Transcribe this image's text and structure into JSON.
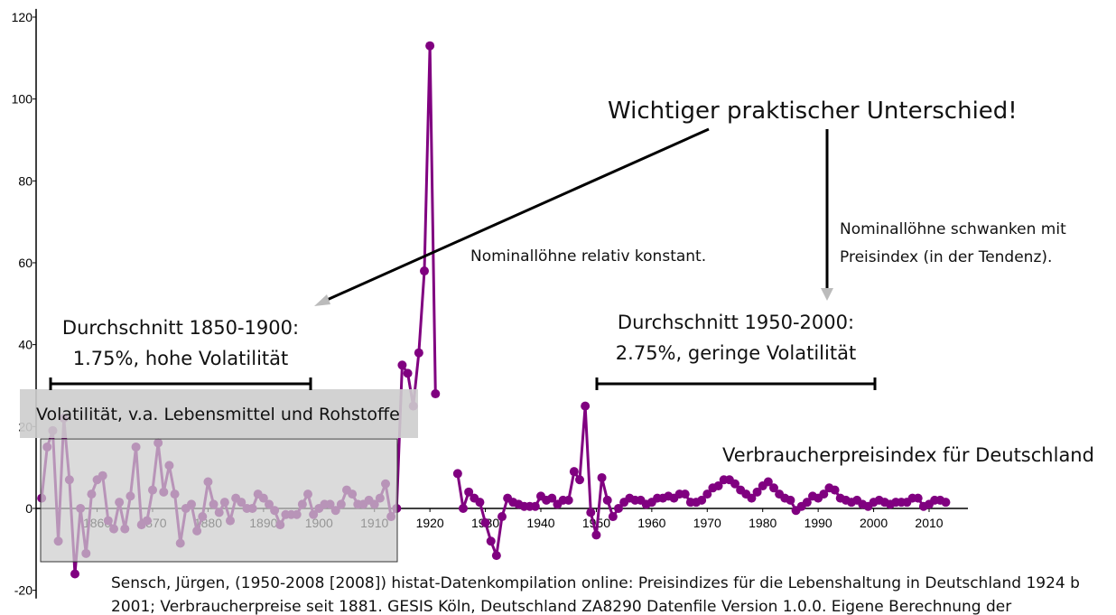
{
  "chart_data": {
    "type": "line",
    "x": [
      1850,
      1851,
      1852,
      1853,
      1854,
      1855,
      1856,
      1857,
      1858,
      1859,
      1860,
      1861,
      1862,
      1863,
      1864,
      1865,
      1866,
      1867,
      1868,
      1869,
      1870,
      1871,
      1872,
      1873,
      1874,
      1875,
      1876,
      1877,
      1878,
      1879,
      1880,
      1881,
      1882,
      1883,
      1884,
      1885,
      1886,
      1887,
      1888,
      1889,
      1890,
      1891,
      1892,
      1893,
      1894,
      1895,
      1896,
      1897,
      1898,
      1899,
      1900,
      1901,
      1902,
      1903,
      1904,
      1905,
      1906,
      1907,
      1908,
      1909,
      1910,
      1911,
      1912,
      1913,
      1914,
      1915,
      1916,
      1917,
      1918,
      1919,
      1920,
      1921,
      1922,
      1923,
      1924,
      1925,
      1926,
      1927,
      1928,
      1929,
      1930,
      1931,
      1932,
      1933,
      1934,
      1935,
      1936,
      1937,
      1938,
      1939,
      1940,
      1941,
      1942,
      1943,
      1944,
      1945,
      1946,
      1947,
      1948,
      1949,
      1950,
      1951,
      1952,
      1953,
      1954,
      1955,
      1956,
      1957,
      1958,
      1959,
      1960,
      1961,
      1962,
      1963,
      1964,
      1965,
      1966,
      1967,
      1968,
      1969,
      1970,
      1971,
      1972,
      1973,
      1974,
      1975,
      1976,
      1977,
      1978,
      1979,
      1980,
      1981,
      1982,
      1983,
      1984,
      1985,
      1986,
      1987,
      1988,
      1989,
      1990,
      1991,
      1992,
      1993,
      1994,
      1995,
      1996,
      1997,
      1998,
      1999,
      2000,
      2001,
      2002,
      2003,
      2004,
      2005,
      2006,
      2007,
      2008,
      2009,
      2010,
      2011,
      2012,
      2013
    ],
    "series": [
      {
        "name": "Verbraucherpreisindex für Deutschland",
        "color": "#800080",
        "values": [
          2.5,
          15,
          19,
          -8,
          22,
          7,
          -16,
          0,
          -11,
          3.5,
          7,
          8,
          -3,
          -5,
          1.5,
          -5,
          3,
          15,
          -4,
          -3,
          4.5,
          16,
          4,
          10.5,
          3.5,
          -8.5,
          0,
          1,
          -5.5,
          -2,
          6.5,
          1,
          -1,
          1.5,
          -3,
          2.5,
          1.5,
          0,
          0,
          3.5,
          2.5,
          1,
          -0.5,
          -4,
          -1.5,
          -1.5,
          -1.5,
          1,
          3.5,
          -1.5,
          0,
          1,
          1,
          -0.5,
          1,
          4.5,
          3.5,
          1,
          1,
          2,
          1,
          2.5,
          6,
          -2,
          0,
          35,
          33,
          25,
          38,
          58,
          113,
          28,
          null,
          null,
          null,
          8.5,
          0,
          4,
          2.5,
          1.5,
          -3.5,
          -8,
          -11.5,
          -2,
          2.5,
          1.5,
          1,
          0.5,
          0.5,
          0.5,
          3,
          2,
          2.5,
          1,
          2,
          2,
          9,
          7,
          25,
          -1,
          -6.5,
          7.5,
          2,
          -2,
          0,
          1.5,
          2.5,
          2,
          2,
          1,
          1.5,
          2.5,
          2.5,
          3,
          2.5,
          3.5,
          3.5,
          1.5,
          1.5,
          2,
          3.5,
          5,
          5.5,
          7,
          7,
          6,
          4.5,
          3.5,
          2.5,
          4,
          5.5,
          6.5,
          5,
          3.5,
          2.5,
          2,
          -0.5,
          0.5,
          1.5,
          3,
          2.5,
          3.5,
          5,
          4.5,
          2.5,
          2,
          1.5,
          2,
          1,
          0.5,
          1.5,
          2,
          1.5,
          1,
          1.5,
          1.5,
          1.5,
          2.5,
          2.5,
          0.5,
          1,
          2,
          2,
          1.5
        ]
      }
    ],
    "xlim": [
      1849,
      2017
    ],
    "xticks": [
      1860,
      1870,
      1880,
      1890,
      1900,
      1910,
      1920,
      1930,
      1940,
      1950,
      1960,
      1970,
      1980,
      1990,
      2000,
      2010
    ],
    "ylim": [
      -22,
      122
    ],
    "yticks": [
      -20,
      0,
      20,
      40,
      60,
      80,
      100,
      120
    ],
    "annotations": {
      "headline": "Wichtiger praktischer Unterschied!",
      "left_note": "Nominallöhne relativ konstant.",
      "right_note": [
        "Nominallöhne schwanken mit",
        "Preisindex (in der Tendenz)."
      ],
      "left_average": [
        "Durchschnitt 1850-1900:",
        "1.75%, hohe Volatilität"
      ],
      "right_average": [
        "Durchschnitt 1950-2000:",
        "2.75%, geringe Volatilität"
      ],
      "volatility_box": "Volatilität, v.a. Lebensmittel und Rohstoffe",
      "source": [
        "Sensch, Jürgen, (1950-2008 [2008]) histat-Datenkompilation online: Preisindizes für die Lebenshaltung in Deutschland 1924 b",
        "2001; Verbraucherpreise seit 1881. GESIS Köln, Deutschland ZA8290 Datenfile Version 1.0.0. Eigene Berechnung der"
      ]
    }
  }
}
